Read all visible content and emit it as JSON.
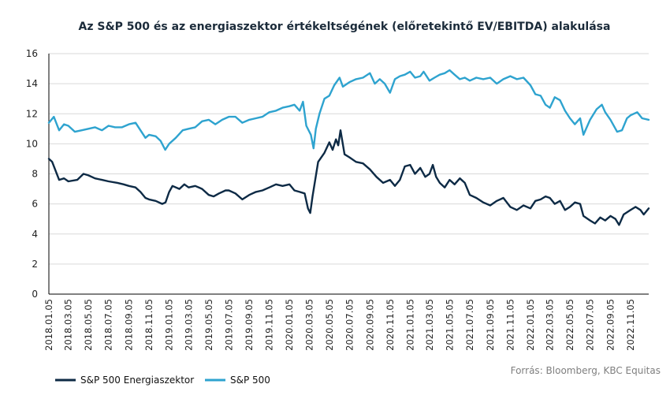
{
  "chart_data": {
    "type": "line",
    "title": "Az S&P 500 és az energiaszektor értékeltségének (előretekintő EV/EBITDA) alakulása",
    "source": "Forrás: Bloomberg, KBC Equitas",
    "ylim": [
      0,
      16
    ],
    "yticks": [
      "0",
      "2",
      "4",
      "6",
      "8",
      "10",
      "12",
      "14",
      "16"
    ],
    "x_start": "2018-01-05",
    "x_end": "2022-12-30",
    "xticks": [
      "2018.01.05",
      "2018.03.05",
      "2018.05.05",
      "2018.07.05",
      "2018.09.05",
      "2018.11.05",
      "2019.01.05",
      "2019.03.05",
      "2019.05.05",
      "2019.07.05",
      "2019.09.05",
      "2019.11.05",
      "2020.01.05",
      "2020.03.05",
      "2020.05.05",
      "2020.07.05",
      "2020.09.05",
      "2020.11.05",
      "2021.01.05",
      "2021.03.05",
      "2021.05.05",
      "2021.07.05",
      "2021.09.05",
      "2021.11.05",
      "2022.01.05",
      "2022.03.05",
      "2022.05.05",
      "2022.07.05",
      "2022.09.05",
      "2022.11.05"
    ],
    "grid": "horizontal",
    "legend_position": "bottom-left",
    "series": [
      {
        "name": "S&P 500 Energiaszektor",
        "color": "#0d2a45",
        "points": [
          [
            "2018-01-05",
            9.0
          ],
          [
            "2018-01-15",
            8.8
          ],
          [
            "2018-02-05",
            7.6
          ],
          [
            "2018-02-20",
            7.7
          ],
          [
            "2018-03-05",
            7.5
          ],
          [
            "2018-04-01",
            7.6
          ],
          [
            "2018-04-20",
            8.0
          ],
          [
            "2018-05-05",
            7.9
          ],
          [
            "2018-05-25",
            7.7
          ],
          [
            "2018-06-15",
            7.6
          ],
          [
            "2018-07-05",
            7.5
          ],
          [
            "2018-08-01",
            7.4
          ],
          [
            "2018-08-20",
            7.3
          ],
          [
            "2018-09-05",
            7.2
          ],
          [
            "2018-09-25",
            7.1
          ],
          [
            "2018-10-10",
            6.8
          ],
          [
            "2018-10-25",
            6.4
          ],
          [
            "2018-11-05",
            6.3
          ],
          [
            "2018-11-25",
            6.2
          ],
          [
            "2018-12-15",
            6.0
          ],
          [
            "2018-12-25",
            6.1
          ],
          [
            "2019-01-05",
            6.8
          ],
          [
            "2019-01-15",
            7.2
          ],
          [
            "2019-02-05",
            7.0
          ],
          [
            "2019-02-20",
            7.3
          ],
          [
            "2019-03-05",
            7.1
          ],
          [
            "2019-03-25",
            7.2
          ],
          [
            "2019-04-15",
            7.0
          ],
          [
            "2019-05-05",
            6.6
          ],
          [
            "2019-05-20",
            6.5
          ],
          [
            "2019-06-05",
            6.7
          ],
          [
            "2019-06-25",
            6.9
          ],
          [
            "2019-07-05",
            6.9
          ],
          [
            "2019-07-25",
            6.7
          ],
          [
            "2019-08-15",
            6.3
          ],
          [
            "2019-09-05",
            6.6
          ],
          [
            "2019-09-25",
            6.8
          ],
          [
            "2019-10-15",
            6.9
          ],
          [
            "2019-11-05",
            7.1
          ],
          [
            "2019-11-25",
            7.3
          ],
          [
            "2019-12-15",
            7.2
          ],
          [
            "2020-01-05",
            7.3
          ],
          [
            "2020-01-20",
            6.9
          ],
          [
            "2020-02-05",
            6.8
          ],
          [
            "2020-02-20",
            6.7
          ],
          [
            "2020-03-01",
            5.7
          ],
          [
            "2020-03-08",
            5.4
          ],
          [
            "2020-03-15",
            6.5
          ],
          [
            "2020-04-01",
            8.8
          ],
          [
            "2020-04-20",
            9.4
          ],
          [
            "2020-05-05",
            10.1
          ],
          [
            "2020-05-15",
            9.6
          ],
          [
            "2020-05-25",
            10.3
          ],
          [
            "2020-06-01",
            9.9
          ],
          [
            "2020-06-08",
            10.9
          ],
          [
            "2020-06-20",
            9.3
          ],
          [
            "2020-07-05",
            9.1
          ],
          [
            "2020-07-25",
            8.8
          ],
          [
            "2020-08-15",
            8.7
          ],
          [
            "2020-09-05",
            8.3
          ],
          [
            "2020-09-25",
            7.8
          ],
          [
            "2020-10-15",
            7.4
          ],
          [
            "2020-11-05",
            7.6
          ],
          [
            "2020-11-20",
            7.2
          ],
          [
            "2020-12-05",
            7.6
          ],
          [
            "2020-12-20",
            8.5
          ],
          [
            "2021-01-05",
            8.6
          ],
          [
            "2021-01-20",
            8.0
          ],
          [
            "2021-02-05",
            8.4
          ],
          [
            "2021-02-20",
            7.8
          ],
          [
            "2021-03-05",
            8.0
          ],
          [
            "2021-03-15",
            8.6
          ],
          [
            "2021-03-25",
            7.8
          ],
          [
            "2021-04-05",
            7.4
          ],
          [
            "2021-04-20",
            7.1
          ],
          [
            "2021-05-05",
            7.6
          ],
          [
            "2021-05-20",
            7.3
          ],
          [
            "2021-06-05",
            7.7
          ],
          [
            "2021-06-20",
            7.4
          ],
          [
            "2021-07-05",
            6.6
          ],
          [
            "2021-07-25",
            6.4
          ],
          [
            "2021-08-15",
            6.1
          ],
          [
            "2021-09-05",
            5.9
          ],
          [
            "2021-09-25",
            6.2
          ],
          [
            "2021-10-15",
            6.4
          ],
          [
            "2021-11-05",
            5.8
          ],
          [
            "2021-11-25",
            5.6
          ],
          [
            "2021-12-15",
            5.9
          ],
          [
            "2022-01-05",
            5.7
          ],
          [
            "2022-01-20",
            6.2
          ],
          [
            "2022-02-05",
            6.3
          ],
          [
            "2022-02-20",
            6.5
          ],
          [
            "2022-03-05",
            6.4
          ],
          [
            "2022-03-20",
            6.0
          ],
          [
            "2022-04-05",
            6.2
          ],
          [
            "2022-04-20",
            5.6
          ],
          [
            "2022-05-05",
            5.8
          ],
          [
            "2022-05-20",
            6.1
          ],
          [
            "2022-06-05",
            6.0
          ],
          [
            "2022-06-15",
            5.2
          ],
          [
            "2022-07-05",
            4.9
          ],
          [
            "2022-07-20",
            4.7
          ],
          [
            "2022-08-05",
            5.1
          ],
          [
            "2022-08-20",
            4.9
          ],
          [
            "2022-09-05",
            5.2
          ],
          [
            "2022-09-20",
            5.0
          ],
          [
            "2022-10-01",
            4.6
          ],
          [
            "2022-10-15",
            5.3
          ],
          [
            "2022-11-05",
            5.6
          ],
          [
            "2022-11-20",
            5.8
          ],
          [
            "2022-12-05",
            5.6
          ],
          [
            "2022-12-15",
            5.3
          ],
          [
            "2022-12-30",
            5.7
          ]
        ]
      },
      {
        "name": "S&P 500",
        "color": "#2ea3cf",
        "points": [
          [
            "2018-01-05",
            11.4
          ],
          [
            "2018-01-20",
            11.8
          ],
          [
            "2018-02-05",
            10.9
          ],
          [
            "2018-02-20",
            11.3
          ],
          [
            "2018-03-05",
            11.2
          ],
          [
            "2018-03-25",
            10.8
          ],
          [
            "2018-04-15",
            10.9
          ],
          [
            "2018-05-05",
            11.0
          ],
          [
            "2018-05-25",
            11.1
          ],
          [
            "2018-06-15",
            10.9
          ],
          [
            "2018-07-05",
            11.2
          ],
          [
            "2018-07-25",
            11.1
          ],
          [
            "2018-08-15",
            11.1
          ],
          [
            "2018-09-05",
            11.3
          ],
          [
            "2018-09-25",
            11.4
          ],
          [
            "2018-10-10",
            10.9
          ],
          [
            "2018-10-25",
            10.4
          ],
          [
            "2018-11-05",
            10.6
          ],
          [
            "2018-11-25",
            10.5
          ],
          [
            "2018-12-10",
            10.2
          ],
          [
            "2018-12-24",
            9.6
          ],
          [
            "2019-01-05",
            10.0
          ],
          [
            "2019-01-25",
            10.4
          ],
          [
            "2019-02-15",
            10.9
          ],
          [
            "2019-03-05",
            11.0
          ],
          [
            "2019-03-25",
            11.1
          ],
          [
            "2019-04-15",
            11.5
          ],
          [
            "2019-05-05",
            11.6
          ],
          [
            "2019-05-25",
            11.3
          ],
          [
            "2019-06-15",
            11.6
          ],
          [
            "2019-07-05",
            11.8
          ],
          [
            "2019-07-25",
            11.8
          ],
          [
            "2019-08-15",
            11.4
          ],
          [
            "2019-09-05",
            11.6
          ],
          [
            "2019-09-25",
            11.7
          ],
          [
            "2019-10-15",
            11.8
          ],
          [
            "2019-11-05",
            12.1
          ],
          [
            "2019-11-25",
            12.2
          ],
          [
            "2019-12-15",
            12.4
          ],
          [
            "2020-01-05",
            12.5
          ],
          [
            "2020-01-20",
            12.6
          ],
          [
            "2020-02-05",
            12.2
          ],
          [
            "2020-02-15",
            12.8
          ],
          [
            "2020-02-25",
            11.2
          ],
          [
            "2020-03-10",
            10.6
          ],
          [
            "2020-03-18",
            9.7
          ],
          [
            "2020-03-25",
            11.0
          ],
          [
            "2020-04-05",
            12.0
          ],
          [
            "2020-04-20",
            13.0
          ],
          [
            "2020-05-05",
            13.2
          ],
          [
            "2020-05-20",
            13.9
          ],
          [
            "2020-06-05",
            14.4
          ],
          [
            "2020-06-15",
            13.8
          ],
          [
            "2020-07-05",
            14.1
          ],
          [
            "2020-07-25",
            14.3
          ],
          [
            "2020-08-15",
            14.4
          ],
          [
            "2020-09-05",
            14.7
          ],
          [
            "2020-09-20",
            14.0
          ],
          [
            "2020-10-05",
            14.3
          ],
          [
            "2020-10-20",
            14.0
          ],
          [
            "2020-11-05",
            13.4
          ],
          [
            "2020-11-20",
            14.3
          ],
          [
            "2020-12-05",
            14.5
          ],
          [
            "2020-12-20",
            14.6
          ],
          [
            "2021-01-05",
            14.8
          ],
          [
            "2021-01-20",
            14.4
          ],
          [
            "2021-02-05",
            14.5
          ],
          [
            "2021-02-15",
            14.8
          ],
          [
            "2021-03-05",
            14.2
          ],
          [
            "2021-03-20",
            14.4
          ],
          [
            "2021-04-05",
            14.6
          ],
          [
            "2021-04-20",
            14.7
          ],
          [
            "2021-05-05",
            14.9
          ],
          [
            "2021-05-20",
            14.6
          ],
          [
            "2021-06-05",
            14.3
          ],
          [
            "2021-06-20",
            14.4
          ],
          [
            "2021-07-05",
            14.2
          ],
          [
            "2021-07-25",
            14.4
          ],
          [
            "2021-08-15",
            14.3
          ],
          [
            "2021-09-05",
            14.4
          ],
          [
            "2021-09-25",
            14.0
          ],
          [
            "2021-10-15",
            14.3
          ],
          [
            "2021-11-05",
            14.5
          ],
          [
            "2021-11-25",
            14.3
          ],
          [
            "2021-12-15",
            14.4
          ],
          [
            "2022-01-05",
            13.9
          ],
          [
            "2022-01-20",
            13.3
          ],
          [
            "2022-02-05",
            13.2
          ],
          [
            "2022-02-20",
            12.6
          ],
          [
            "2022-03-05",
            12.4
          ],
          [
            "2022-03-20",
            13.1
          ],
          [
            "2022-04-05",
            12.9
          ],
          [
            "2022-04-20",
            12.2
          ],
          [
            "2022-05-05",
            11.7
          ],
          [
            "2022-05-20",
            11.3
          ],
          [
            "2022-06-05",
            11.7
          ],
          [
            "2022-06-15",
            10.6
          ],
          [
            "2022-07-05",
            11.6
          ],
          [
            "2022-07-25",
            12.3
          ],
          [
            "2022-08-10",
            12.6
          ],
          [
            "2022-08-20",
            12.1
          ],
          [
            "2022-09-05",
            11.6
          ],
          [
            "2022-09-25",
            10.8
          ],
          [
            "2022-10-10",
            10.9
          ],
          [
            "2022-10-25",
            11.7
          ],
          [
            "2022-11-05",
            11.9
          ],
          [
            "2022-11-25",
            12.1
          ],
          [
            "2022-12-10",
            11.7
          ],
          [
            "2022-12-30",
            11.6
          ]
        ]
      }
    ]
  }
}
